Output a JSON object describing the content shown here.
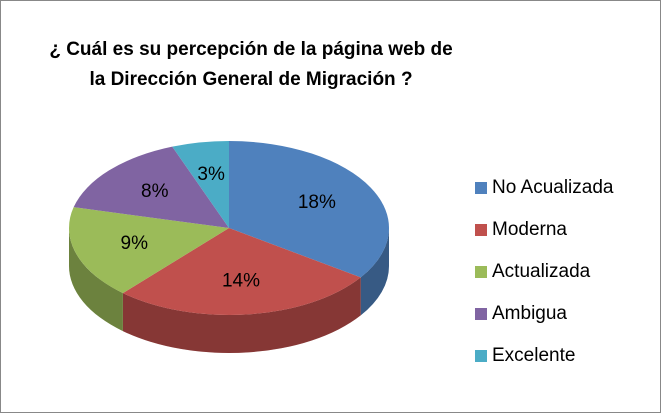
{
  "chart_data": {
    "type": "pie",
    "title": "¿ Cuál es su percepción de la página web de la Dirección General de Migración ?",
    "categories": [
      "No Acualizada",
      "Moderna",
      "Actualizada",
      "Ambigua",
      "Excelente"
    ],
    "values": [
      18,
      14,
      9,
      8,
      3
    ],
    "value_labels": [
      "18%",
      "14%",
      "9%",
      "8%",
      "3%"
    ],
    "colors": [
      "#4f81bd",
      "#c0504d",
      "#9bbb59",
      "#8064a2",
      "#4bacc6"
    ],
    "legend": "right"
  }
}
